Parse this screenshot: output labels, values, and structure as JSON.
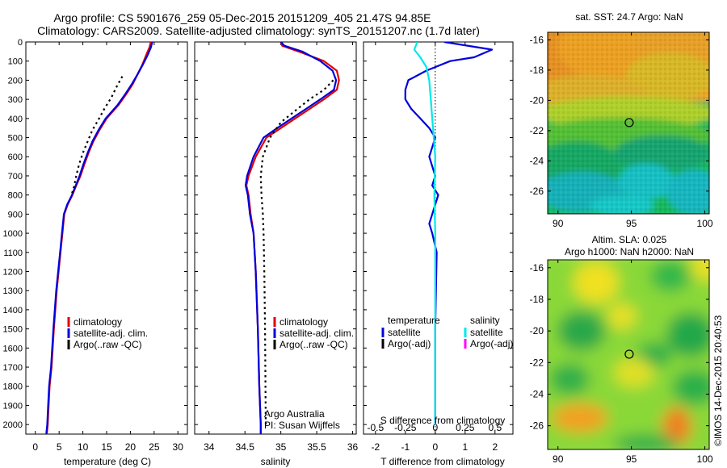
{
  "header": {
    "line1": "Argo profile: CS 5901676_259 05-Dec-2015 20151209_405 21.47S 94.85E",
    "line2": "Climatology: CARS2009. Satellite-adjusted climatology: synTS_20151207.nc (1.7d later)"
  },
  "colors": {
    "climatology": "#e00000",
    "satellite": "#0000dd",
    "argo": "#000000",
    "salinity_satellite": "#00e8e8",
    "salinity_argo": "#ff00ff"
  },
  "footer": {
    "credit_1": "Argo Australia",
    "credit_2": "PI: Susan Wijffels",
    "stamp": "©IMOS 14-Dec-2015 20:40:53"
  },
  "chart_data": [
    {
      "id": "temperature",
      "type": "line",
      "xlabel": "temperature (deg C)",
      "ylabel": "",
      "xlim": [
        -2,
        32
      ],
      "ylim": [
        2050,
        0
      ],
      "xticks": [
        0,
        5,
        10,
        15,
        20,
        25,
        30
      ],
      "yticks": [
        0,
        100,
        200,
        300,
        400,
        500,
        600,
        700,
        800,
        900,
        1000,
        1100,
        1200,
        1300,
        1400,
        1500,
        1600,
        1700,
        1800,
        1900,
        2000
      ],
      "legend": [
        "climatology",
        "satellite-adj. clim.",
        "Argo(..raw -QC)"
      ],
      "series": [
        {
          "name": "climatology",
          "dash": false,
          "x": [
            24.3,
            24,
            23.3,
            22.5,
            21.5,
            20.5,
            19.2,
            17.5,
            15,
            13.5,
            12.2,
            11.2,
            10.3,
            9.5,
            8.6,
            7.8,
            6.8,
            6.1,
            5.7,
            5.3,
            4.5,
            3.9,
            3.4,
            3.0,
            2.8,
            2.6,
            2.4
          ],
          "y": [
            0,
            30,
            70,
            120,
            170,
            220,
            270,
            330,
            400,
            460,
            520,
            580,
            640,
            700,
            750,
            800,
            850,
            900,
            1000,
            1100,
            1300,
            1500,
            1700,
            1800,
            1900,
            2000,
            2050
          ]
        },
        {
          "name": "satellite-adj. clim.",
          "dash": false,
          "x": [
            24.6,
            24.3,
            23.6,
            22.6,
            21.5,
            20.3,
            19,
            17.3,
            14.8,
            13.3,
            12,
            11,
            10.1,
            9.3,
            8.5,
            7.7,
            6.7,
            6.0,
            5.6,
            5.2,
            4.4,
            3.8,
            3.3,
            2.9,
            2.7,
            2.5,
            2.3
          ],
          "y": [
            0,
            30,
            70,
            120,
            170,
            220,
            270,
            330,
            400,
            460,
            520,
            580,
            640,
            700,
            750,
            800,
            850,
            900,
            1000,
            1100,
            1300,
            1500,
            1700,
            1800,
            1900,
            2000,
            2050
          ]
        },
        {
          "name": "Argo(..raw -QC)",
          "dash": true,
          "x": [
            18.3,
            17.2,
            16,
            14.5,
            13.2,
            12,
            11,
            10,
            9.2,
            8.6,
            8.1,
            7.6
          ],
          "y": [
            180,
            230,
            290,
            350,
            410,
            460,
            520,
            580,
            640,
            700,
            760,
            800
          ]
        }
      ]
    },
    {
      "id": "salinity",
      "type": "line",
      "xlabel": "salinity",
      "ylabel": "",
      "xlim": [
        33.8,
        36.05
      ],
      "ylim": [
        2050,
        0
      ],
      "xticks": [
        34,
        34.5,
        35,
        35.5,
        36
      ],
      "legend": [
        "climatology",
        "satellite-adj. clim.",
        "Argo(..raw -QC)"
      ],
      "series": [
        {
          "name": "climatology",
          "dash": false,
          "x": [
            35,
            35.02,
            35.25,
            35.6,
            35.78,
            35.81,
            35.78,
            35.6,
            35.4,
            35.2,
            35.0,
            34.8,
            34.65,
            34.55,
            34.52,
            34.55,
            34.58,
            34.62,
            34.65,
            34.68,
            34.7,
            34.72,
            34.72
          ],
          "y": [
            0,
            20,
            50,
            100,
            150,
            200,
            250,
            300,
            350,
            400,
            450,
            500,
            600,
            700,
            750,
            800,
            900,
            1000,
            1200,
            1500,
            1800,
            2000,
            2050
          ]
        },
        {
          "name": "satellite-adj. clim.",
          "dash": false,
          "x": [
            35.0,
            35.05,
            35.3,
            35.55,
            35.72,
            35.77,
            35.74,
            35.55,
            35.35,
            35.15,
            34.95,
            34.76,
            34.62,
            34.53,
            34.51,
            34.54,
            34.57,
            34.62,
            34.65,
            34.68,
            34.7,
            34.72,
            34.72
          ],
          "y": [
            0,
            20,
            50,
            100,
            150,
            200,
            250,
            300,
            350,
            400,
            450,
            500,
            600,
            700,
            750,
            800,
            900,
            1000,
            1200,
            1500,
            1800,
            2000,
            2050
          ]
        },
        {
          "name": "Argo(..raw -QC)",
          "dash": true,
          "x": [
            35.73,
            35.6,
            35.4,
            35.2,
            35.0,
            34.85,
            34.75,
            34.72,
            34.73,
            34.75,
            34.76,
            34.77,
            34.78,
            34.79
          ],
          "y": [
            200,
            250,
            300,
            360,
            420,
            500,
            600,
            700,
            800,
            900,
            1000,
            1200,
            1500,
            2000
          ]
        }
      ]
    },
    {
      "id": "difference",
      "type": "line",
      "xlabel": "T difference from climatology",
      "x2label": "S difference from climatology",
      "xlim": [
        -2.4,
        2.6
      ],
      "ylim": [
        2050,
        0
      ],
      "xticks": [
        -2,
        -1,
        0,
        1,
        2
      ],
      "x2ticks": [
        -0.5,
        -0.25,
        0,
        0.25,
        0.5
      ],
      "legend_headers": [
        "temperature",
        "salinity"
      ],
      "legend": [
        "satellite",
        "Argo(-adj)",
        "satellite",
        "Argo(-adj)"
      ],
      "series": [
        {
          "name": "temperature satellite",
          "dash": false,
          "x": [
            0.3,
            1.9,
            1.3,
            0.5,
            -0.3,
            -0.9,
            -1.0,
            -1.0,
            -0.8,
            -0.5,
            -0.2,
            0,
            -0.1,
            -0.2,
            -0.1,
            0,
            -0.1,
            0.1,
            0,
            -0.1,
            -0.2,
            -0.1,
            0.05,
            0,
            0,
            0
          ],
          "y": [
            0,
            40,
            80,
            100,
            150,
            200,
            250,
            300,
            350,
            400,
            450,
            500,
            550,
            600,
            650,
            700,
            750,
            800,
            850,
            900,
            950,
            1000,
            1100,
            1500,
            1800,
            2000
          ]
        },
        {
          "name": "salinity satellite",
          "dash": false,
          "x": [
            -0.6,
            -0.7,
            -0.5,
            -0.3,
            -0.2,
            -0.15,
            -0.1,
            -0.05,
            0,
            -0.03,
            0,
            0
          ],
          "y": [
            0,
            40,
            80,
            130,
            200,
            300,
            400,
            500,
            600,
            800,
            1000,
            2000
          ]
        }
      ]
    }
  ],
  "map_sst": {
    "title": "sat. SST: 24.7  Argo: NaN",
    "xticks": [
      90,
      95,
      100
    ],
    "yticks": [
      -16,
      -18,
      -20,
      -22,
      -24,
      -26
    ],
    "xlim": [
      89.3,
      100.3
    ],
    "ylim": [
      -27.5,
      -15.5
    ],
    "marker": {
      "lon": 94.85,
      "lat": -21.47
    }
  },
  "map_sla": {
    "title_1": "Altim. SLA: 0.025",
    "title_2": "Argo h1000: NaN  h2000: NaN",
    "xticks": [
      90,
      95,
      100
    ],
    "yticks": [
      -16,
      -18,
      -20,
      -22,
      -24,
      -26
    ],
    "xlim": [
      89.3,
      100.3
    ],
    "ylim": [
      -27.5,
      -15.5
    ],
    "marker": {
      "lon": 94.85,
      "lat": -21.47
    }
  }
}
